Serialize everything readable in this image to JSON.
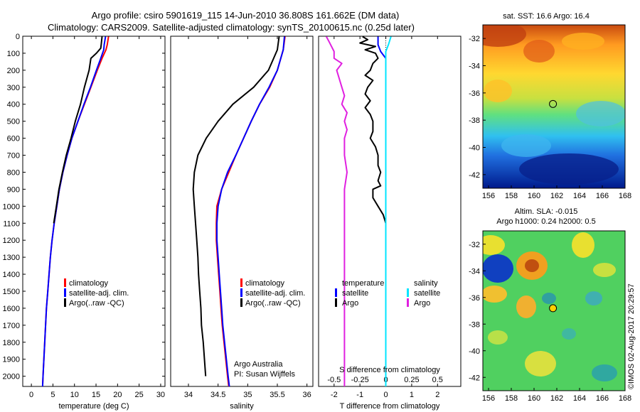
{
  "header": {
    "line1": "Argo profile: csiro 5901619_115 14-Jun-2010 36.808S 161.662E (DM data)",
    "line2": "Climatology: CARS2009. Satellite-adjusted climatology: synTS_20100615.nc (0.25d later)"
  },
  "watermark": "©IMOS 02-Aug-2017 20:29:57",
  "colors": {
    "climatology": "#ff0000",
    "satellite": "#0000ff",
    "argo": "#000000",
    "sal_satellite": "#00e5ff",
    "sal_argo": "#e020e0"
  },
  "chart_data": [
    {
      "type": "line",
      "xlabel": "temperature (deg C)",
      "ylabel": "",
      "xlim": [
        -2,
        31
      ],
      "ylim": [
        2060,
        0
      ],
      "xticks": [
        0,
        5,
        10,
        15,
        20,
        25,
        30
      ],
      "yticks": [
        0,
        100,
        200,
        300,
        400,
        500,
        600,
        700,
        800,
        900,
        1000,
        1100,
        1200,
        1300,
        1400,
        1500,
        1600,
        1700,
        1800,
        1900,
        2000
      ],
      "legend": [
        "climatology",
        "satellite-adj. clim.",
        "Argo(..raw -QC)"
      ],
      "series": [
        {
          "name": "climatology",
          "role": "climatology",
          "points": [
            [
              17.9,
              2
            ],
            [
              17.6,
              50
            ],
            [
              17.3,
              80
            ],
            [
              16.4,
              130
            ],
            [
              15.3,
              200
            ],
            [
              13.8,
              300
            ],
            [
              12.3,
              400
            ],
            [
              10.8,
              500
            ],
            [
              9.4,
              600
            ],
            [
              8.3,
              700
            ],
            [
              7.3,
              800
            ],
            [
              6.5,
              900
            ],
            [
              5.9,
              1000
            ],
            [
              5.3,
              1100
            ],
            [
              4.8,
              1200
            ],
            [
              4.4,
              1300
            ],
            [
              4.1,
              1400
            ],
            [
              3.8,
              1500
            ],
            [
              3.5,
              1600
            ],
            [
              3.3,
              1700
            ],
            [
              3.1,
              1800
            ],
            [
              2.9,
              1900
            ],
            [
              2.7,
              2000
            ],
            [
              2.6,
              2060
            ]
          ]
        },
        {
          "name": "satellite-adj. clim.",
          "role": "satellite",
          "points": [
            [
              17.2,
              2
            ],
            [
              16.9,
              50
            ],
            [
              16.8,
              80
            ],
            [
              16.1,
              130
            ],
            [
              15.1,
              200
            ],
            [
              13.7,
              300
            ],
            [
              12.2,
              400
            ],
            [
              10.8,
              500
            ],
            [
              9.4,
              600
            ],
            [
              8.3,
              700
            ],
            [
              7.3,
              800
            ],
            [
              6.5,
              900
            ],
            [
              5.9,
              1000
            ],
            [
              5.3,
              1100
            ],
            [
              4.8,
              1200
            ],
            [
              4.4,
              1300
            ],
            [
              4.1,
              1400
            ],
            [
              3.8,
              1500
            ],
            [
              3.5,
              1600
            ],
            [
              3.3,
              1700
            ],
            [
              3.1,
              1800
            ],
            [
              2.9,
              1900
            ],
            [
              2.7,
              2000
            ],
            [
              2.6,
              2060
            ]
          ]
        },
        {
          "name": "Argo(..raw -QC)",
          "role": "argo",
          "points": [
            [
              16.4,
              2
            ],
            [
              16.2,
              50
            ],
            [
              16.1,
              70
            ],
            [
              15.1,
              100
            ],
            [
              13.8,
              130
            ],
            [
              13.4,
              200
            ],
            [
              12.3,
              300
            ],
            [
              11.4,
              400
            ],
            [
              10.2,
              500
            ],
            [
              9.2,
              600
            ],
            [
              8.1,
              700
            ],
            [
              7.2,
              800
            ],
            [
              6.4,
              900
            ],
            [
              5.8,
              1000
            ],
            [
              5.2,
              1100
            ]
          ]
        }
      ]
    },
    {
      "type": "line",
      "xlabel": "salinity",
      "ylabel": "",
      "xlim": [
        33.7,
        36.1
      ],
      "ylim": [
        2060,
        0
      ],
      "xticks": [
        34,
        34.5,
        35,
        35.5,
        36
      ],
      "xticklabels": [
        "34",
        "34.5",
        "35",
        "35.5",
        "36"
      ],
      "legend": [
        "climatology",
        "satellite-adj. clim.",
        "Argo(..raw -QC)"
      ],
      "annotation": [
        "Argo Australia",
        "PI: Susan Wijffels"
      ],
      "series": [
        {
          "name": "climatology",
          "role": "climatology",
          "points": [
            [
              35.63,
              2
            ],
            [
              35.6,
              80
            ],
            [
              35.5,
              200
            ],
            [
              35.37,
              300
            ],
            [
              35.2,
              400
            ],
            [
              35.06,
              500
            ],
            [
              34.93,
              600
            ],
            [
              34.8,
              700
            ],
            [
              34.68,
              800
            ],
            [
              34.56,
              900
            ],
            [
              34.48,
              1000
            ],
            [
              34.47,
              1100
            ],
            [
              34.47,
              1200
            ],
            [
              34.49,
              1300
            ],
            [
              34.51,
              1400
            ],
            [
              34.53,
              1500
            ],
            [
              34.55,
              1600
            ],
            [
              34.57,
              1700
            ],
            [
              34.6,
              1800
            ],
            [
              34.63,
              1900
            ],
            [
              34.66,
              2000
            ],
            [
              34.68,
              2060
            ]
          ]
        },
        {
          "name": "satellite-adj. clim.",
          "role": "satellite",
          "points": [
            [
              35.62,
              2
            ],
            [
              35.6,
              80
            ],
            [
              35.5,
              200
            ],
            [
              35.36,
              300
            ],
            [
              35.2,
              400
            ],
            [
              35.06,
              500
            ],
            [
              34.93,
              600
            ],
            [
              34.8,
              700
            ],
            [
              34.66,
              800
            ],
            [
              34.56,
              900
            ],
            [
              34.5,
              1000
            ],
            [
              34.48,
              1100
            ],
            [
              34.48,
              1200
            ],
            [
              34.5,
              1300
            ],
            [
              34.52,
              1400
            ],
            [
              34.54,
              1500
            ],
            [
              34.56,
              1600
            ],
            [
              34.58,
              1700
            ],
            [
              34.61,
              1800
            ],
            [
              34.64,
              1900
            ],
            [
              34.67,
              2000
            ],
            [
              34.69,
              2060
            ]
          ]
        },
        {
          "name": "Argo(..raw -QC)",
          "role": "argo",
          "points": [
            [
              35.53,
              2
            ],
            [
              35.5,
              80
            ],
            [
              35.35,
              200
            ],
            [
              35.1,
              300
            ],
            [
              34.75,
              400
            ],
            [
              34.5,
              500
            ],
            [
              34.3,
              600
            ],
            [
              34.16,
              700
            ],
            [
              34.1,
              800
            ],
            [
              34.08,
              900
            ],
            [
              34.1,
              1000
            ],
            [
              34.12,
              1100
            ],
            [
              34.14,
              1200
            ],
            [
              34.16,
              1300
            ],
            [
              34.17,
              1400
            ],
            [
              34.19,
              1500
            ],
            [
              34.21,
              1600
            ],
            [
              34.22,
              1700
            ],
            [
              34.25,
              1800
            ],
            [
              34.27,
              1900
            ],
            [
              34.29,
              2000
            ]
          ]
        }
      ]
    },
    {
      "type": "line",
      "xlabel": "T difference from climatology",
      "xlabel_top": "S difference from climatology",
      "xlim": [
        -2.6,
        2.9
      ],
      "ylim": [
        2060,
        0
      ],
      "xticks": [
        -2,
        -1,
        0,
        1,
        2
      ],
      "xticklabels_top": [
        [
          "-0.5",
          -2
        ],
        [
          "-0.25",
          -1
        ],
        [
          "0",
          0
        ],
        [
          "0.25",
          1
        ],
        [
          "0.5",
          2
        ]
      ],
      "legend_headers": [
        "temperature",
        "salinity"
      ],
      "legend": [
        "satellite",
        "Argo",
        "satellite",
        "Argo"
      ],
      "zero_line": 0,
      "series": [
        {
          "name": "satellite",
          "role": "satellite",
          "points": [
            [
              -0.3,
              2
            ],
            [
              -0.3,
              50
            ],
            [
              -0.2,
              90
            ],
            [
              0,
              130
            ],
            [
              0,
              200
            ],
            [
              0,
              300
            ],
            [
              0,
              400
            ],
            [
              0,
              500
            ],
            [
              0,
              600
            ],
            [
              0,
              700
            ],
            [
              0,
              800
            ],
            [
              0,
              1000
            ],
            [
              0,
              1200
            ],
            [
              0,
              1400
            ],
            [
              0,
              1600
            ],
            [
              0,
              1800
            ],
            [
              0,
              2000
            ],
            [
              0,
              2060
            ]
          ]
        },
        {
          "name": "Argo",
          "role": "argo",
          "points": [
            [
              -0.9,
              2
            ],
            [
              -0.7,
              20
            ],
            [
              -1.0,
              40
            ],
            [
              -0.4,
              60
            ],
            [
              -0.8,
              80
            ],
            [
              -0.4,
              100
            ],
            [
              -0.3,
              130
            ],
            [
              -0.5,
              160
            ],
            [
              -0.6,
              200
            ],
            [
              -0.8,
              230
            ],
            [
              -0.5,
              260
            ],
            [
              -0.7,
              300
            ],
            [
              -0.8,
              340
            ],
            [
              -0.6,
              380
            ],
            [
              -0.8,
              420
            ],
            [
              -0.6,
              460
            ],
            [
              -0.5,
              500
            ],
            [
              -0.5,
              560
            ],
            [
              -0.6,
              600
            ],
            [
              -0.4,
              650
            ],
            [
              -0.3,
              700
            ],
            [
              -0.3,
              760
            ],
            [
              -0.2,
              800
            ],
            [
              -0.3,
              850
            ],
            [
              -0.2,
              880
            ],
            [
              -0.5,
              900
            ],
            [
              -0.5,
              950
            ],
            [
              -0.3,
              1000
            ],
            [
              -0.1,
              1050
            ],
            [
              0,
              1100
            ]
          ]
        },
        {
          "name": "satellite",
          "role": "sal_satellite",
          "points": [
            [
              0.2,
              2
            ],
            [
              0.1,
              50
            ],
            [
              0,
              90
            ],
            [
              0,
              150
            ],
            [
              0,
              250
            ],
            [
              0,
              400
            ],
            [
              0,
              600
            ],
            [
              0,
              800
            ],
            [
              0,
              1000
            ],
            [
              0,
              1200
            ],
            [
              0,
              1400
            ],
            [
              0,
              1600
            ],
            [
              0,
              1800
            ],
            [
              0,
              2000
            ],
            [
              0,
              2060
            ]
          ]
        },
        {
          "name": "Argo",
          "role": "sal_argo",
          "points": [
            [
              -2.3,
              2
            ],
            [
              -2.2,
              30
            ],
            [
              -2.1,
              60
            ],
            [
              -2.0,
              90
            ],
            [
              -2.0,
              130
            ],
            [
              -1.7,
              160
            ],
            [
              -1.9,
              200
            ],
            [
              -1.8,
              250
            ],
            [
              -1.7,
              300
            ],
            [
              -1.6,
              350
            ],
            [
              -1.7,
              400
            ],
            [
              -1.5,
              450
            ],
            [
              -1.6,
              500
            ],
            [
              -1.5,
              550
            ],
            [
              -1.6,
              600
            ],
            [
              -1.6,
              700
            ],
            [
              -1.5,
              800
            ],
            [
              -1.6,
              900
            ],
            [
              -1.6,
              1000
            ],
            [
              -1.6,
              1100
            ],
            [
              -1.6,
              1200
            ],
            [
              -1.6,
              1300
            ],
            [
              -1.6,
              1400
            ],
            [
              -1.6,
              1500
            ],
            [
              -1.6,
              1600
            ],
            [
              -1.6,
              1700
            ],
            [
              -1.6,
              1800
            ],
            [
              -1.6,
              1900
            ],
            [
              -1.6,
              2000
            ],
            [
              -1.6,
              2060
            ]
          ]
        }
      ]
    },
    {
      "type": "heatmap",
      "title": "sat. SST: 16.6 Argo: 16.4",
      "xlim": [
        155.5,
        168
      ],
      "ylim": [
        -43,
        -31
      ],
      "xticks": [
        156,
        158,
        160,
        162,
        164,
        166,
        168
      ],
      "yticks": [
        -32,
        -34,
        -36,
        -38,
        -40,
        -42
      ],
      "marker": {
        "lon": 161.662,
        "lat": -36.808,
        "fill": "none"
      }
    },
    {
      "type": "heatmap",
      "title_lines": [
        "Altim. SLA: -0.015",
        "Argo h1000: 0.24 h2000: 0.5"
      ],
      "xlim": [
        155.5,
        168
      ],
      "ylim": [
        -43,
        -31
      ],
      "xticks": [
        156,
        158,
        160,
        162,
        164,
        166,
        168
      ],
      "yticks": [
        -32,
        -34,
        -36,
        -38,
        -40,
        -42
      ],
      "marker": {
        "lon": 161.662,
        "lat": -36.808,
        "fill": "#ffd000"
      }
    }
  ]
}
